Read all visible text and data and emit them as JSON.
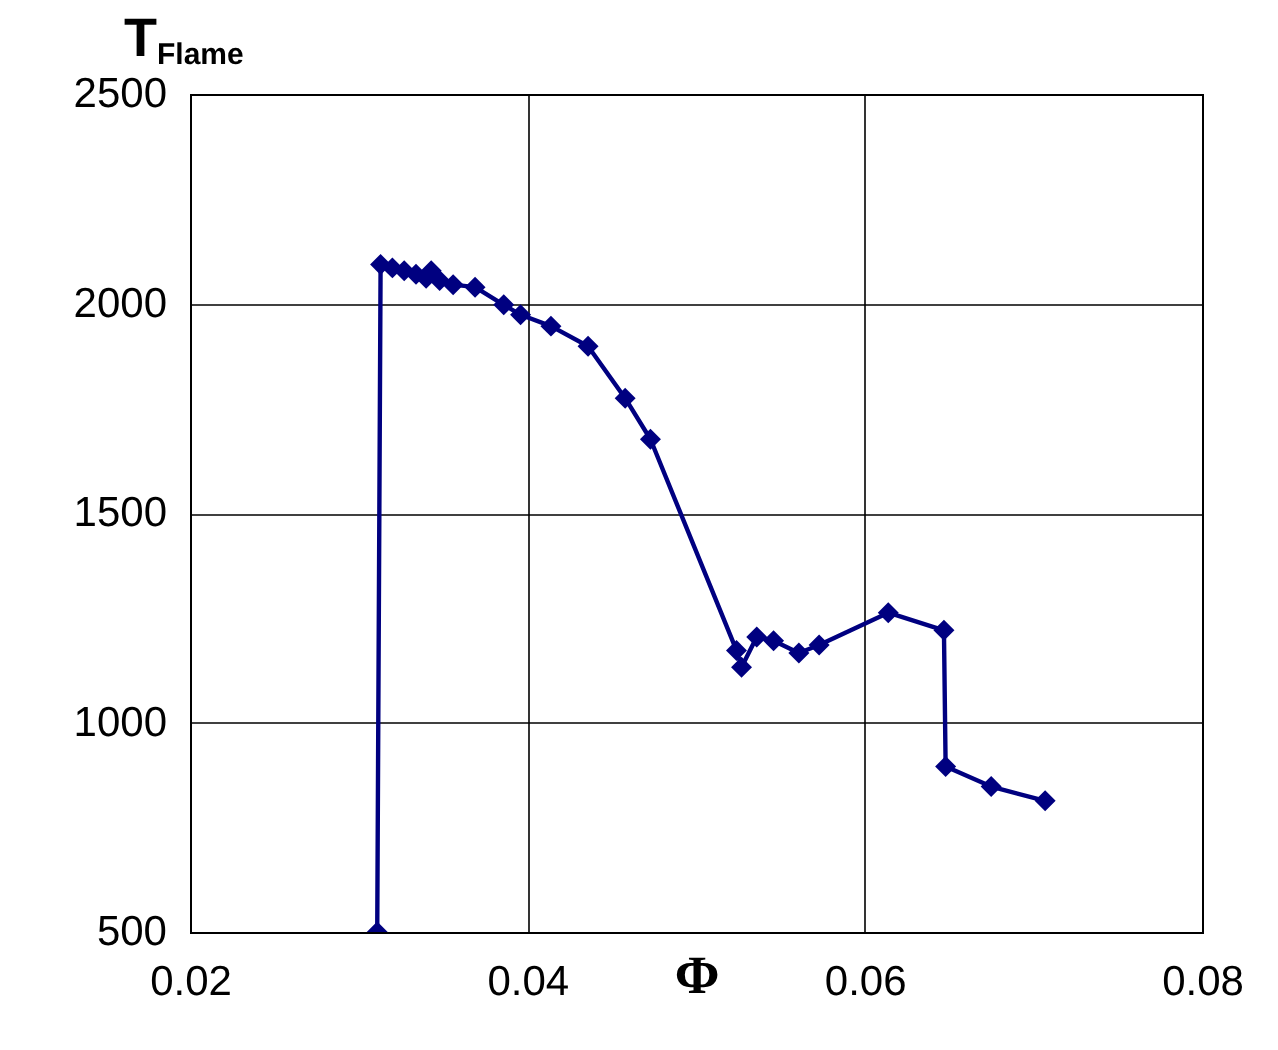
{
  "chart_data": {
    "type": "line",
    "xlabel": "Φ",
    "ylabel": "T$_{Flame}$",
    "x": [
      0.0311,
      0.0313,
      0.032,
      0.0327,
      0.0334,
      0.034,
      0.0343,
      0.0348,
      0.0356,
      0.0369,
      0.0386,
      0.0396,
      0.0414,
      0.0436,
      0.0458,
      0.0473,
      0.0524,
      0.0527,
      0.0536,
      0.0546,
      0.0561,
      0.0573,
      0.0614,
      0.0647,
      0.0648,
      0.0675,
      0.0707
    ],
    "series": [
      {
        "color": "#000080",
        "values": [
          500,
          2093,
          2085,
          2078,
          2070,
          2060,
          2078,
          2055,
          2045,
          2039,
          1997,
          1973,
          1946,
          1898,
          1774,
          1676,
          1172,
          1132,
          1204,
          1195,
          1166,
          1185,
          1262,
          1220,
          895,
          847,
          813
        ]
      }
    ],
    "xlim": [
      0.02,
      0.08
    ],
    "xticks": [
      0.02,
      0.04,
      0.06,
      0.08
    ],
    "ylim": [
      500,
      2500
    ],
    "yticks": [
      500,
      1000,
      1500,
      2000,
      2500
    ],
    "grid": true,
    "marker": "diamond",
    "line_style": "solid"
  }
}
